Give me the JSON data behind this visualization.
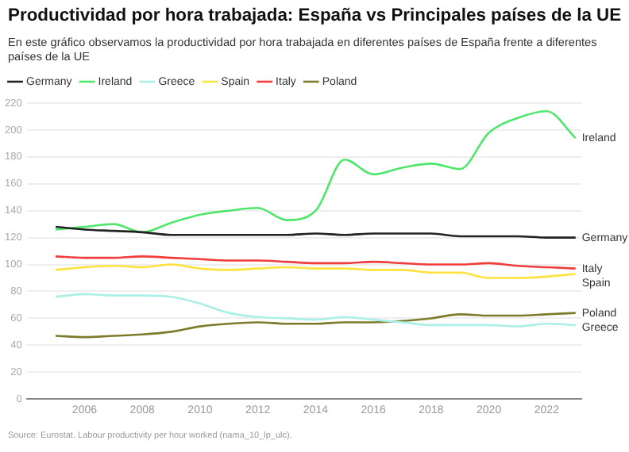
{
  "chart_data": {
    "type": "line",
    "title": "Productividad por hora trabajada: España vs Principales países de la UE",
    "subtitle": "En este gráfico observamos la productividad por hora trabajada en diferentes países de España frente a diferentes países de la UE",
    "annotations": [
      "Source: Eurostat. Labour productivity per hour worked (nama_10_lp_ulc)."
    ],
    "x": [
      2005,
      2006,
      2007,
      2008,
      2009,
      2010,
      2011,
      2012,
      2013,
      2014,
      2015,
      2016,
      2017,
      2018,
      2019,
      2020,
      2021,
      2022,
      2023
    ],
    "series": [
      {
        "name": "Germany",
        "color": "#222222",
        "values": [
          128,
          126,
          125,
          124,
          122,
          122,
          122,
          122,
          122,
          123,
          122,
          123,
          123,
          123,
          121,
          121,
          121,
          120,
          120
        ]
      },
      {
        "name": "Ireland",
        "color": "#4ee66b",
        "values": [
          126,
          128,
          130,
          124,
          131,
          137,
          140,
          142,
          133,
          140,
          178,
          167,
          172,
          175,
          171,
          198,
          209,
          214,
          194
        ]
      },
      {
        "name": "Greece",
        "color": "#aaf0e6",
        "values": [
          76,
          78,
          77,
          77,
          76,
          71,
          64,
          61,
          60,
          59,
          61,
          59,
          57,
          55,
          55,
          55,
          54,
          56,
          55
        ]
      },
      {
        "name": "Spain",
        "color": "#ffe23c",
        "values": [
          96,
          98,
          99,
          98,
          100,
          97,
          96,
          97,
          98,
          97,
          97,
          96,
          96,
          94,
          94,
          90,
          90,
          91,
          93
        ]
      },
      {
        "name": "Italy",
        "color": "#f03c3c",
        "values": [
          106,
          105,
          105,
          106,
          105,
          104,
          103,
          103,
          102,
          101,
          101,
          102,
          101,
          100,
          100,
          101,
          99,
          98,
          97
        ]
      },
      {
        "name": "Poland",
        "color": "#7d7a2c",
        "values": [
          47,
          46,
          47,
          48,
          50,
          54,
          56,
          57,
          56,
          56,
          57,
          57,
          58,
          60,
          63,
          62,
          62,
          63,
          64
        ]
      }
    ],
    "xlim": [
      2004,
      2023.2
    ],
    "xticks": [
      2006,
      2008,
      2010,
      2012,
      2014,
      2016,
      2018,
      2020,
      2022
    ],
    "ylim": [
      0,
      220
    ],
    "yticks": [
      0,
      20,
      40,
      60,
      80,
      100,
      120,
      140,
      160,
      180,
      200,
      220
    ],
    "grid": "y",
    "legend": "top left",
    "marker": "none",
    "line_style": "solid"
  }
}
